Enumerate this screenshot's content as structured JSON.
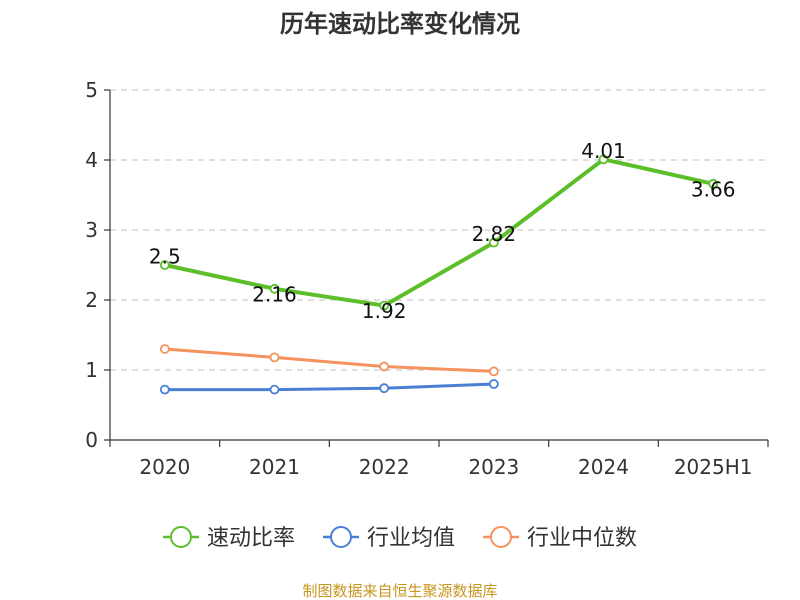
{
  "chart_data": {
    "type": "line",
    "title": "历年速动比率变化情况",
    "categories": [
      "2020",
      "2021",
      "2022",
      "2023",
      "2024",
      "2025H1"
    ],
    "ylim": [
      0,
      5
    ],
    "yticks": [
      0,
      1,
      2,
      3,
      4,
      5
    ],
    "grid": "horizontal-dashed",
    "legend_position": "bottom",
    "series": [
      {
        "name": "速动比率",
        "color": "#5cbf2a",
        "values": [
          2.5,
          2.16,
          1.92,
          2.82,
          4.01,
          3.66
        ],
        "labels": [
          "2.5",
          "2.16",
          "1.92",
          "2.82",
          "4.01",
          "3.66"
        ]
      },
      {
        "name": "行业均值",
        "color": "#4a7fd6",
        "values": [
          0.72,
          0.72,
          0.74,
          0.8,
          null,
          null
        ]
      },
      {
        "name": "行业中位数",
        "color": "#f5925e",
        "values": [
          1.3,
          1.18,
          1.05,
          0.98,
          null,
          null
        ]
      }
    ],
    "source": "制图数据来自恒生聚源数据库"
  }
}
